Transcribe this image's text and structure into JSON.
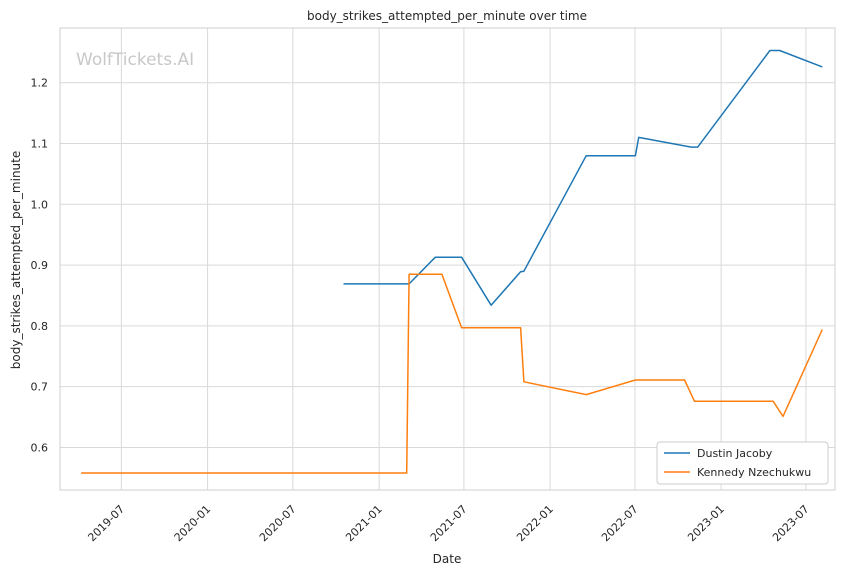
{
  "watermark": "WolfTickets.AI",
  "chart_data": {
    "type": "line",
    "title": "body_strikes_attempted_per_minute over time",
    "xlabel": "Date",
    "ylabel": "body_strikes_attempted_per_minute",
    "x_ticks": [
      "2019-07",
      "2020-01",
      "2020-07",
      "2021-01",
      "2021-07",
      "2022-01",
      "2022-07",
      "2023-01",
      "2023-07"
    ],
    "y_ticks": [
      0.6,
      0.7,
      0.8,
      0.9,
      1.0,
      1.1,
      1.2
    ],
    "xlim": [
      "2019-02-20",
      "2023-09-01"
    ],
    "ylim": [
      0.53,
      1.29
    ],
    "grid": true,
    "legend_position": "lower right",
    "series": [
      {
        "name": "Dustin Jacoby",
        "color": "#1f77b4",
        "points": [
          [
            "2020-10-17",
            0.869
          ],
          [
            "2021-03-06",
            0.869
          ],
          [
            "2021-05-01",
            0.913
          ],
          [
            "2021-06-26",
            0.913
          ],
          [
            "2021-08-28",
            0.834
          ],
          [
            "2021-10-30",
            0.889
          ],
          [
            "2021-11-06",
            0.89
          ],
          [
            "2022-03-19",
            1.08
          ],
          [
            "2022-07-02",
            1.08
          ],
          [
            "2022-07-09",
            1.11
          ],
          [
            "2022-10-29",
            1.094
          ],
          [
            "2022-11-12",
            1.094
          ],
          [
            "2023-04-15",
            1.253
          ],
          [
            "2023-05-06",
            1.253
          ],
          [
            "2023-08-05",
            1.226
          ]
        ]
      },
      {
        "name": "Kennedy Nzechukwu",
        "color": "#ff7f0e",
        "points": [
          [
            "2019-04-06",
            0.558
          ],
          [
            "2021-03-01",
            0.558
          ],
          [
            "2021-03-06",
            0.885
          ],
          [
            "2021-05-15",
            0.885
          ],
          [
            "2021-06-26",
            0.797
          ],
          [
            "2021-10-30",
            0.797
          ],
          [
            "2021-11-06",
            0.708
          ],
          [
            "2022-03-19",
            0.687
          ],
          [
            "2022-07-02",
            0.711
          ],
          [
            "2022-10-15",
            0.711
          ],
          [
            "2022-11-05",
            0.676
          ],
          [
            "2023-04-22",
            0.676
          ],
          [
            "2023-05-13",
            0.651
          ],
          [
            "2023-08-05",
            0.794
          ]
        ]
      }
    ]
  }
}
